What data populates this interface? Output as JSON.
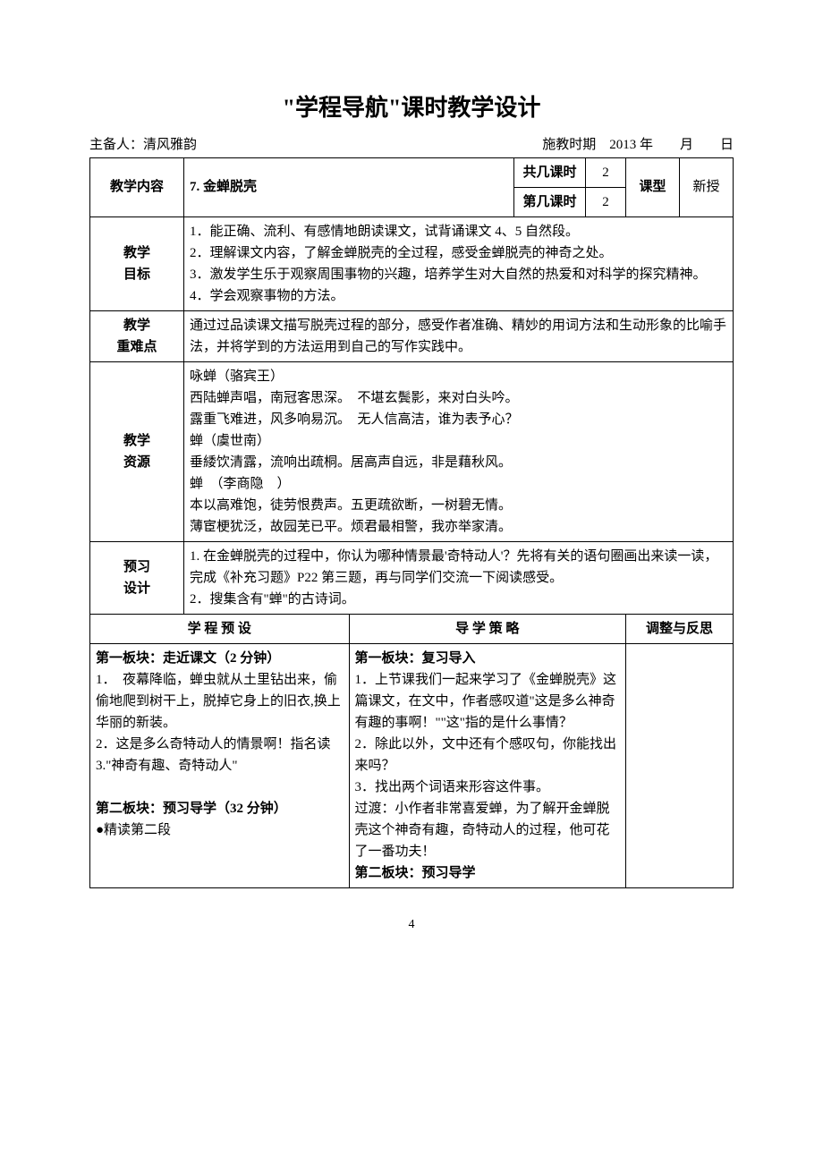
{
  "title": "\"学程导航\"课时教学设计",
  "meta": {
    "preparer_label": "主备人：",
    "preparer_name": "清风雅韵",
    "date_label": "施教时期",
    "date_value": "2013 年　　月　　日"
  },
  "header_rows": {
    "content_label": "教学内容",
    "content_value": "7. 金蝉脱壳",
    "total_periods_label": "共几课时",
    "total_periods_value": "2",
    "which_period_label": "第几课时",
    "which_period_value": "2",
    "type_label": "课型",
    "type_value": "新授"
  },
  "goals": {
    "label": "教学\n目标",
    "items": [
      "1．能正确、流利、有感情地朗读课文，试背诵课文 4、5 自然段。",
      "2．理解课文内容，了解金蝉脱壳的全过程，感受金蝉脱壳的神奇之处。",
      "3．激发学生乐于观察周围事物的兴趣，培养学生对大自然的热爱和对科学的探究精神。",
      "4．学会观察事物的方法。"
    ]
  },
  "difficulty": {
    "label": "教学\n重难点",
    "text": "通过过品读课文描写脱壳过程的部分，感受作者准确、精妙的用词方法和生动形象的比喻手法，并将学到的方法运用到自己的写作实践中。"
  },
  "resources": {
    "label": "教学\n资源",
    "lines": [
      "咏蝉（骆宾王）",
      "西陆蝉声唱，南冠客思深。　不堪玄鬓影，来对白头吟。",
      "露重飞难进，风多响易沉。　无人信高洁，谁为表予心？",
      "蝉（虞世南）",
      "垂緌饮清露，流响出疏桐。居高声自远，非是藉秋风。",
      "蝉　（李商隐　）",
      "本以高难饱，徒劳恨费声。五更疏欲断，一树碧无情。",
      "薄宦梗犹泛，故园芜已平。烦君最相警，我亦举家清。"
    ]
  },
  "preview": {
    "label": "预习\n设计",
    "items": [
      "1. 在金蝉脱壳的过程中，你认为哪种情景最'奇特动人'？先将有关的语句圈画出来读一读，完成《补充习题》P22 第三题，再与同学们交流一下阅读感受。",
      "2．搜集含有\"蝉\"的古诗词。"
    ]
  },
  "section_headers": {
    "col1": "学 程 预 设",
    "col2": "导 学 策 略",
    "col3": "调整与反思"
  },
  "left_panel": {
    "block1_title": "第一板块：走近课文（2 分钟）",
    "block1_lines": [
      "1．　夜幕降临，蝉虫就从土里钻出来，偷偷地爬到树干上，脱掉它身上的旧衣,换上华丽的新装。",
      "2．这是多么奇特动人的情景啊！指名读",
      "3.\"神奇有趣、奇特动人\""
    ],
    "block2_title": "第二板块：预习导学（32 分钟）",
    "block2_lines": [
      "●精读第二段"
    ]
  },
  "right_panel": {
    "block1_title": "第一板块：复习导入",
    "block1_lines": [
      "1．上节课我们一起来学习了《金蝉脱壳》这篇课文，在文中，作者感叹道\"这是多么神奇有趣的事啊！\"\"这\"指的是什么事情？",
      "2．除此以外，文中还有个感叹句，你能找出来吗？",
      "3．找出两个词语来形容这件事。",
      "过渡：小作者非常喜爱蝉，为了解开金蝉脱壳这个神奇有趣，奇特动人的过程，他可花了一番功夫！"
    ],
    "block2_title": "第二板块：预习导学"
  },
  "page_number": "4"
}
